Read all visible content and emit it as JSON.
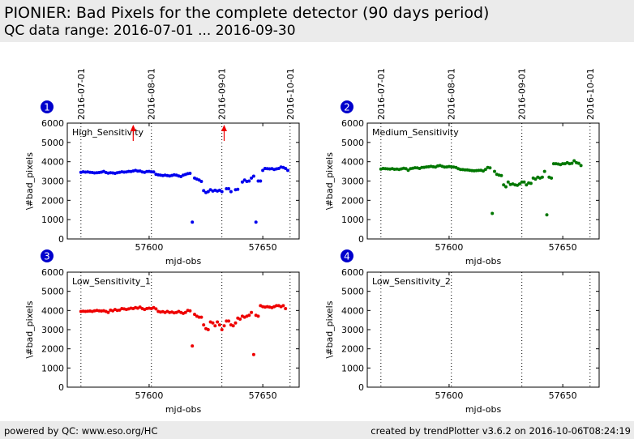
{
  "header": {
    "title": "PIONIER: Bad Pixels for the complete detector (90 days period)",
    "subtitle": "QC data range: 2016-07-01 ... 2016-09-30"
  },
  "footer": {
    "left": "powered by QC: www.eso.org/HC",
    "right": "created by trendPlotter v3.6.2 on 2016-10-06T08:24:19"
  },
  "colors": {
    "blue": "#0000ee",
    "green": "#007700",
    "red": "#ee0000",
    "badge": "#0000cc"
  },
  "chart_data": [
    {
      "type": "scatter",
      "panel": "1",
      "label": "High_Sensitivity",
      "xlabel": "mjd-obs",
      "ylabel": "\\#bad_pixels",
      "xlim": [
        57564,
        57666
      ],
      "ylim": [
        0,
        6000
      ],
      "yticks": [
        0,
        1000,
        2000,
        3000,
        4000,
        5000,
        6000
      ],
      "xticks": [
        57600,
        57650
      ],
      "date_lines": [
        {
          "mjd": 57570,
          "label": "2016-07-01"
        },
        {
          "mjd": 57601,
          "label": "2016-08-01"
        },
        {
          "mjd": 57632,
          "label": "2016-09-01"
        },
        {
          "mjd": 57662,
          "label": "2016-10-01"
        }
      ],
      "color": "blue",
      "points": [
        [
          57570,
          3450
        ],
        [
          57571,
          3480
        ],
        [
          57572,
          3460
        ],
        [
          57573,
          3470
        ],
        [
          57574,
          3450
        ],
        [
          57575,
          3440
        ],
        [
          57576,
          3420
        ],
        [
          57577,
          3430
        ],
        [
          57578,
          3440
        ],
        [
          57579,
          3460
        ],
        [
          57580,
          3500
        ],
        [
          57581,
          3440
        ],
        [
          57582,
          3410
        ],
        [
          57583,
          3430
        ],
        [
          57584,
          3420
        ],
        [
          57585,
          3400
        ],
        [
          57586,
          3430
        ],
        [
          57587,
          3450
        ],
        [
          57588,
          3480
        ],
        [
          57589,
          3460
        ],
        [
          57590,
          3470
        ],
        [
          57591,
          3500
        ],
        [
          57592,
          3490
        ],
        [
          57593,
          3520
        ],
        [
          57594,
          3550
        ],
        [
          57595,
          3510
        ],
        [
          57596,
          3520
        ],
        [
          57597,
          3470
        ],
        [
          57598,
          3450
        ],
        [
          57599,
          3490
        ],
        [
          57600,
          3500
        ],
        [
          57601,
          3480
        ],
        [
          57602,
          3470
        ],
        [
          57603,
          3350
        ],
        [
          57604,
          3320
        ],
        [
          57605,
          3300
        ],
        [
          57606,
          3280
        ],
        [
          57607,
          3300
        ],
        [
          57608,
          3280
        ],
        [
          57609,
          3260
        ],
        [
          57610,
          3290
        ],
        [
          57611,
          3320
        ],
        [
          57612,
          3300
        ],
        [
          57613,
          3260
        ],
        [
          57614,
          3230
        ],
        [
          57615,
          3300
        ],
        [
          57616,
          3340
        ],
        [
          57617,
          3380
        ],
        [
          57618,
          3400
        ],
        [
          57619,
          870
        ],
        [
          57620,
          3150
        ],
        [
          57621,
          3100
        ],
        [
          57622,
          3050
        ],
        [
          57623,
          2980
        ],
        [
          57624,
          2500
        ],
        [
          57625,
          2400
        ],
        [
          57626,
          2450
        ],
        [
          57627,
          2550
        ],
        [
          57628,
          2480
        ],
        [
          57629,
          2520
        ],
        [
          57630,
          2480
        ],
        [
          57631,
          2520
        ],
        [
          57632,
          2450
        ],
        [
          57634,
          2600
        ],
        [
          57635,
          2600
        ],
        [
          57636,
          2450
        ],
        [
          57638,
          2550
        ],
        [
          57639,
          2570
        ],
        [
          57641,
          2950
        ],
        [
          57642,
          3050
        ],
        [
          57643,
          2980
        ],
        [
          57644,
          3000
        ],
        [
          57645,
          3150
        ],
        [
          57646,
          3250
        ],
        [
          57647,
          870
        ],
        [
          57648,
          3000
        ],
        [
          57649,
          3000
        ],
        [
          57650,
          3550
        ],
        [
          57651,
          3650
        ],
        [
          57652,
          3640
        ],
        [
          57653,
          3630
        ],
        [
          57654,
          3640
        ],
        [
          57655,
          3600
        ],
        [
          57656,
          3630
        ],
        [
          57657,
          3650
        ],
        [
          57658,
          3720
        ],
        [
          57659,
          3700
        ],
        [
          57660,
          3650
        ],
        [
          57661,
          3550
        ]
      ],
      "outliers": [
        57593,
        57633
      ]
    },
    {
      "type": "scatter",
      "panel": "2",
      "label": "Medium_Sensitivity",
      "xlabel": "mjd-obs",
      "ylabel": "\\#bad_pixels",
      "xlim": [
        57564,
        57666
      ],
      "ylim": [
        0,
        6000
      ],
      "yticks": [
        0,
        1000,
        2000,
        3000,
        4000,
        5000,
        6000
      ],
      "xticks": [
        57600,
        57650
      ],
      "date_lines": [
        {
          "mjd": 57570,
          "label": "2016-07-01"
        },
        {
          "mjd": 57601,
          "label": "2016-08-01"
        },
        {
          "mjd": 57632,
          "label": "2016-09-01"
        },
        {
          "mjd": 57662,
          "label": "2016-10-01"
        }
      ],
      "color": "green",
      "points": [
        [
          57570,
          3620
        ],
        [
          57571,
          3650
        ],
        [
          57572,
          3640
        ],
        [
          57573,
          3630
        ],
        [
          57574,
          3620
        ],
        [
          57575,
          3640
        ],
        [
          57576,
          3610
        ],
        [
          57577,
          3620
        ],
        [
          57578,
          3600
        ],
        [
          57579,
          3630
        ],
        [
          57580,
          3660
        ],
        [
          57581,
          3640
        ],
        [
          57582,
          3560
        ],
        [
          57583,
          3640
        ],
        [
          57584,
          3660
        ],
        [
          57585,
          3690
        ],
        [
          57586,
          3680
        ],
        [
          57587,
          3650
        ],
        [
          57588,
          3700
        ],
        [
          57589,
          3710
        ],
        [
          57590,
          3730
        ],
        [
          57591,
          3740
        ],
        [
          57592,
          3760
        ],
        [
          57593,
          3740
        ],
        [
          57594,
          3720
        ],
        [
          57595,
          3780
        ],
        [
          57596,
          3800
        ],
        [
          57597,
          3760
        ],
        [
          57598,
          3720
        ],
        [
          57599,
          3730
        ],
        [
          57600,
          3750
        ],
        [
          57601,
          3740
        ],
        [
          57602,
          3720
        ],
        [
          57603,
          3700
        ],
        [
          57604,
          3640
        ],
        [
          57605,
          3600
        ],
        [
          57606,
          3590
        ],
        [
          57607,
          3580
        ],
        [
          57608,
          3580
        ],
        [
          57609,
          3560
        ],
        [
          57610,
          3540
        ],
        [
          57611,
          3530
        ],
        [
          57612,
          3540
        ],
        [
          57613,
          3550
        ],
        [
          57614,
          3560
        ],
        [
          57615,
          3520
        ],
        [
          57616,
          3600
        ],
        [
          57617,
          3700
        ],
        [
          57618,
          3680
        ],
        [
          57619,
          1320
        ],
        [
          57620,
          3500
        ],
        [
          57621,
          3350
        ],
        [
          57622,
          3300
        ],
        [
          57623,
          3280
        ],
        [
          57624,
          2800
        ],
        [
          57625,
          2700
        ],
        [
          57626,
          2950
        ],
        [
          57627,
          2820
        ],
        [
          57628,
          2850
        ],
        [
          57629,
          2800
        ],
        [
          57630,
          2780
        ],
        [
          57631,
          2850
        ],
        [
          57632,
          2950
        ],
        [
          57633,
          2950
        ],
        [
          57634,
          2800
        ],
        [
          57635,
          2900
        ],
        [
          57636,
          2880
        ],
        [
          57637,
          3150
        ],
        [
          57638,
          3100
        ],
        [
          57639,
          3200
        ],
        [
          57640,
          3150
        ],
        [
          57641,
          3200
        ],
        [
          57642,
          3500
        ],
        [
          57643,
          1250
        ],
        [
          57644,
          3200
        ],
        [
          57645,
          3150
        ],
        [
          57646,
          3900
        ],
        [
          57647,
          3900
        ],
        [
          57648,
          3880
        ],
        [
          57649,
          3850
        ],
        [
          57650,
          3900
        ],
        [
          57651,
          3900
        ],
        [
          57652,
          3950
        ],
        [
          57653,
          3900
        ],
        [
          57654,
          3920
        ],
        [
          57655,
          4050
        ],
        [
          57656,
          3950
        ],
        [
          57657,
          3920
        ],
        [
          57658,
          3800
        ]
      ]
    },
    {
      "type": "scatter",
      "panel": "3",
      "label": "Low_Sensitivity_1",
      "xlabel": "mjd-obs",
      "ylabel": "\\#bad_pixels",
      "xlim": [
        57564,
        57666
      ],
      "ylim": [
        0,
        6000
      ],
      "yticks": [
        0,
        1000,
        2000,
        3000,
        4000,
        5000,
        6000
      ],
      "xticks": [
        57600,
        57650
      ],
      "date_lines": [
        {
          "mjd": 57570,
          "label": "2016-07-01"
        },
        {
          "mjd": 57601,
          "label": "2016-08-01"
        },
        {
          "mjd": 57632,
          "label": "2016-09-01"
        },
        {
          "mjd": 57662,
          "label": "2016-10-01"
        }
      ],
      "color": "red",
      "points": [
        [
          57570,
          3950
        ],
        [
          57571,
          3960
        ],
        [
          57572,
          3950
        ],
        [
          57573,
          3960
        ],
        [
          57574,
          3970
        ],
        [
          57575,
          3950
        ],
        [
          57576,
          3980
        ],
        [
          57577,
          4000
        ],
        [
          57578,
          3980
        ],
        [
          57579,
          3970
        ],
        [
          57580,
          3990
        ],
        [
          57581,
          3950
        ],
        [
          57582,
          3900
        ],
        [
          57583,
          4020
        ],
        [
          57584,
          3980
        ],
        [
          57585,
          4050
        ],
        [
          57586,
          4000
        ],
        [
          57587,
          4020
        ],
        [
          57588,
          4100
        ],
        [
          57589,
          4080
        ],
        [
          57590,
          4050
        ],
        [
          57591,
          4080
        ],
        [
          57592,
          4120
        ],
        [
          57593,
          4100
        ],
        [
          57594,
          4150
        ],
        [
          57595,
          4120
        ],
        [
          57596,
          4180
        ],
        [
          57597,
          4100
        ],
        [
          57598,
          4050
        ],
        [
          57599,
          4100
        ],
        [
          57600,
          4120
        ],
        [
          57601,
          4100
        ],
        [
          57602,
          4150
        ],
        [
          57603,
          4080
        ],
        [
          57604,
          3950
        ],
        [
          57605,
          3920
        ],
        [
          57606,
          3940
        ],
        [
          57607,
          3900
        ],
        [
          57608,
          3950
        ],
        [
          57609,
          3900
        ],
        [
          57610,
          3920
        ],
        [
          57611,
          3880
        ],
        [
          57612,
          3900
        ],
        [
          57613,
          3950
        ],
        [
          57614,
          3900
        ],
        [
          57615,
          3850
        ],
        [
          57616,
          3900
        ],
        [
          57617,
          4000
        ],
        [
          57618,
          3980
        ],
        [
          57619,
          2150
        ],
        [
          57620,
          3800
        ],
        [
          57621,
          3700
        ],
        [
          57622,
          3650
        ],
        [
          57623,
          3650
        ],
        [
          57624,
          3250
        ],
        [
          57625,
          3050
        ],
        [
          57626,
          3000
        ],
        [
          57627,
          3400
        ],
        [
          57628,
          3350
        ],
        [
          57629,
          3200
        ],
        [
          57630,
          3400
        ],
        [
          57631,
          3250
        ],
        [
          57632,
          3000
        ],
        [
          57633,
          3200
        ],
        [
          57634,
          3450
        ],
        [
          57635,
          3450
        ],
        [
          57636,
          3250
        ],
        [
          57637,
          3200
        ],
        [
          57638,
          3350
        ],
        [
          57639,
          3600
        ],
        [
          57640,
          3550
        ],
        [
          57641,
          3700
        ],
        [
          57642,
          3650
        ],
        [
          57643,
          3700
        ],
        [
          57644,
          3750
        ],
        [
          57645,
          3900
        ],
        [
          57646,
          1700
        ],
        [
          57647,
          3750
        ],
        [
          57648,
          3700
        ],
        [
          57649,
          4250
        ],
        [
          57650,
          4200
        ],
        [
          57651,
          4180
        ],
        [
          57652,
          4200
        ],
        [
          57653,
          4180
        ],
        [
          57654,
          4150
        ],
        [
          57655,
          4200
        ],
        [
          57656,
          4250
        ],
        [
          57657,
          4250
        ],
        [
          57658,
          4200
        ],
        [
          57659,
          4250
        ],
        [
          57660,
          4100
        ]
      ]
    },
    {
      "type": "scatter",
      "panel": "4",
      "label": "Low_Sensitivity_2",
      "xlabel": "mjd-obs",
      "ylabel": "\\#bad_pixels",
      "xlim": [
        57564,
        57666
      ],
      "ylim": [
        0,
        6000
      ],
      "yticks": [
        0,
        1000,
        2000,
        3000,
        4000,
        5000,
        6000
      ],
      "xticks": [
        57600,
        57650
      ],
      "date_lines": [
        {
          "mjd": 57570,
          "label": "2016-07-01"
        },
        {
          "mjd": 57601,
          "label": "2016-08-01"
        },
        {
          "mjd": 57632,
          "label": "2016-09-01"
        },
        {
          "mjd": 57662,
          "label": "2016-10-01"
        }
      ],
      "color": "blue",
      "points": []
    }
  ]
}
